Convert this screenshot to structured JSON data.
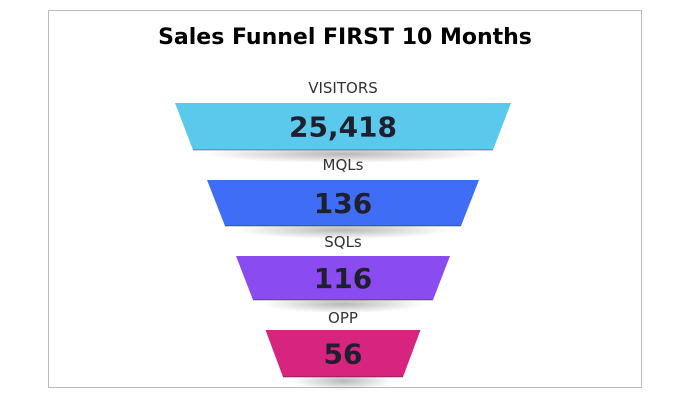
{
  "chart_data": {
    "type": "funnel",
    "title": "Sales Funnel FIRST 10 Months",
    "stages": [
      {
        "label": "VISITORS",
        "value": 25418,
        "display": "25,418",
        "color": "#5BC9EC"
      },
      {
        "label": "MQLs",
        "value": 136,
        "display": "136",
        "color": "#3F6DF5"
      },
      {
        "label": "SQLs",
        "value": 116,
        "display": "116",
        "color": "#8A4BF0"
      },
      {
        "label": "OPP",
        "value": 56,
        "display": "56",
        "color": "#D7247E"
      }
    ]
  }
}
